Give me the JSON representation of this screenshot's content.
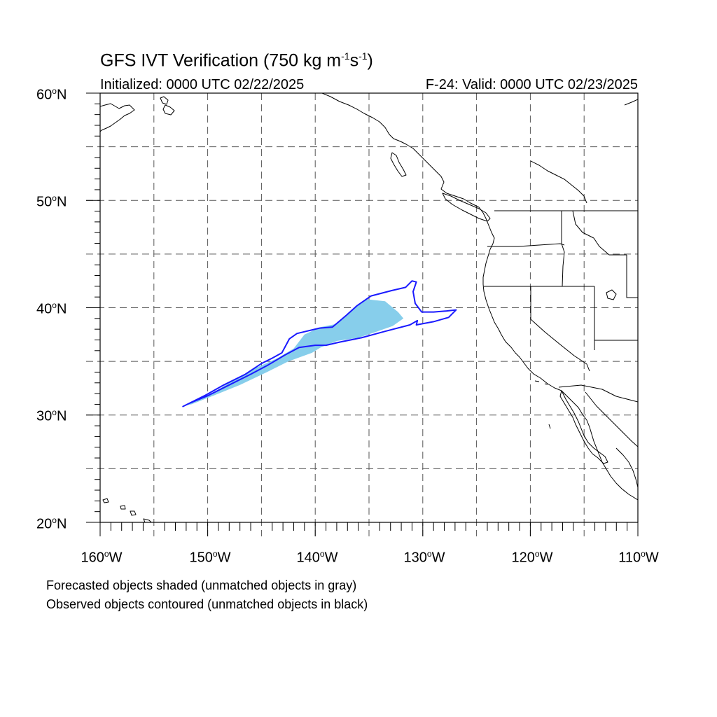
{
  "title": {
    "main": "GFS IVT Verification (750 kg m",
    "exp1": "-1",
    "mid": "s",
    "exp2": "-1",
    "end": ")"
  },
  "subtitle": {
    "initialized": "Initialized: 0000 UTC 02/22/2025",
    "valid": "F-24: Valid: 0000 UTC 02/23/2025"
  },
  "axes": {
    "lat_labels": [
      {
        "deg": "60",
        "suffix": "N",
        "value": 60
      },
      {
        "deg": "50",
        "suffix": "N",
        "value": 50
      },
      {
        "deg": "40",
        "suffix": "N",
        "value": 40
      },
      {
        "deg": "30",
        "suffix": "N",
        "value": 30
      },
      {
        "deg": "20",
        "suffix": "N",
        "value": 20
      }
    ],
    "lon_labels": [
      {
        "deg": "160",
        "suffix": "W",
        "value": -160
      },
      {
        "deg": "150",
        "suffix": "W",
        "value": -150
      },
      {
        "deg": "140",
        "suffix": "W",
        "value": -140
      },
      {
        "deg": "130",
        "suffix": "W",
        "value": -130
      },
      {
        "deg": "120",
        "suffix": "W",
        "value": -120
      },
      {
        "deg": "110",
        "suffix": "W",
        "value": -110
      }
    ],
    "lat_range": [
      20,
      60
    ],
    "lon_range": [
      -160,
      -110
    ],
    "grid": "dashed every 5 degrees"
  },
  "captions": {
    "line1": "Forecasted objects shaded (unmatched objects in gray)",
    "line2": "Observed objects contoured (unmatched objects in black)"
  },
  "colors": {
    "forecast_fill": "#87ceeb",
    "observed_contour": "#1a1aff",
    "coastline": "#000000",
    "grid": "#555555"
  },
  "forecast_object": [
    [
      -152.0,
      30.9
    ],
    [
      -149.5,
      32.1
    ],
    [
      -147.5,
      33.3
    ],
    [
      -145.5,
      34.4
    ],
    [
      -143.5,
      35.3
    ],
    [
      -142.0,
      36.2
    ],
    [
      -141.0,
      37.5
    ],
    [
      -139.5,
      38.2
    ],
    [
      -138.0,
      38.5
    ],
    [
      -136.5,
      39.8
    ],
    [
      -135.3,
      40.8
    ],
    [
      -133.5,
      40.6
    ],
    [
      -132.3,
      39.6
    ],
    [
      -131.8,
      39.0
    ],
    [
      -132.8,
      38.3
    ],
    [
      -134.5,
      37.7
    ],
    [
      -136.0,
      37.2
    ],
    [
      -138.0,
      36.9
    ],
    [
      -139.5,
      36.3
    ],
    [
      -140.3,
      35.8
    ],
    [
      -142.5,
      35.0
    ],
    [
      -144.5,
      34.0
    ],
    [
      -147.0,
      32.8
    ],
    [
      -149.5,
      31.8
    ],
    [
      -151.5,
      31.0
    ]
  ],
  "observed_object": [
    [
      -152.3,
      30.8
    ],
    [
      -150.3,
      31.8
    ],
    [
      -148.5,
      32.8
    ],
    [
      -146.5,
      33.8
    ],
    [
      -145.0,
      34.8
    ],
    [
      -144.0,
      35.3
    ],
    [
      -143.1,
      35.8
    ],
    [
      -142.4,
      37.1
    ],
    [
      -141.7,
      37.6
    ],
    [
      -139.6,
      38.1
    ],
    [
      -138.4,
      38.2
    ],
    [
      -137.1,
      39.3
    ],
    [
      -136.1,
      40.2
    ],
    [
      -134.8,
      41.1
    ],
    [
      -132.9,
      41.6
    ],
    [
      -131.6,
      41.9
    ],
    [
      -131.0,
      42.5
    ],
    [
      -130.6,
      42.4
    ],
    [
      -130.9,
      41.5
    ],
    [
      -130.7,
      40.4
    ],
    [
      -130.1,
      39.6
    ],
    [
      -129.0,
      39.6
    ],
    [
      -127.8,
      39.7
    ],
    [
      -126.9,
      39.8
    ],
    [
      -127.6,
      39.1
    ],
    [
      -129.0,
      38.7
    ],
    [
      -130.6,
      38.4
    ],
    [
      -130.5,
      38.8
    ],
    [
      -131.2,
      38.4
    ],
    [
      -133.5,
      37.8
    ],
    [
      -135.7,
      37.2
    ],
    [
      -137.7,
      36.8
    ],
    [
      -139.0,
      36.5
    ],
    [
      -140.0,
      36.5
    ],
    [
      -141.5,
      36.3
    ],
    [
      -142.8,
      35.6
    ],
    [
      -144.5,
      34.6
    ],
    [
      -146.0,
      33.8
    ],
    [
      -148.0,
      32.8
    ],
    [
      -150.0,
      31.8
    ],
    [
      -151.7,
      31.1
    ],
    [
      -152.3,
      30.8
    ]
  ]
}
